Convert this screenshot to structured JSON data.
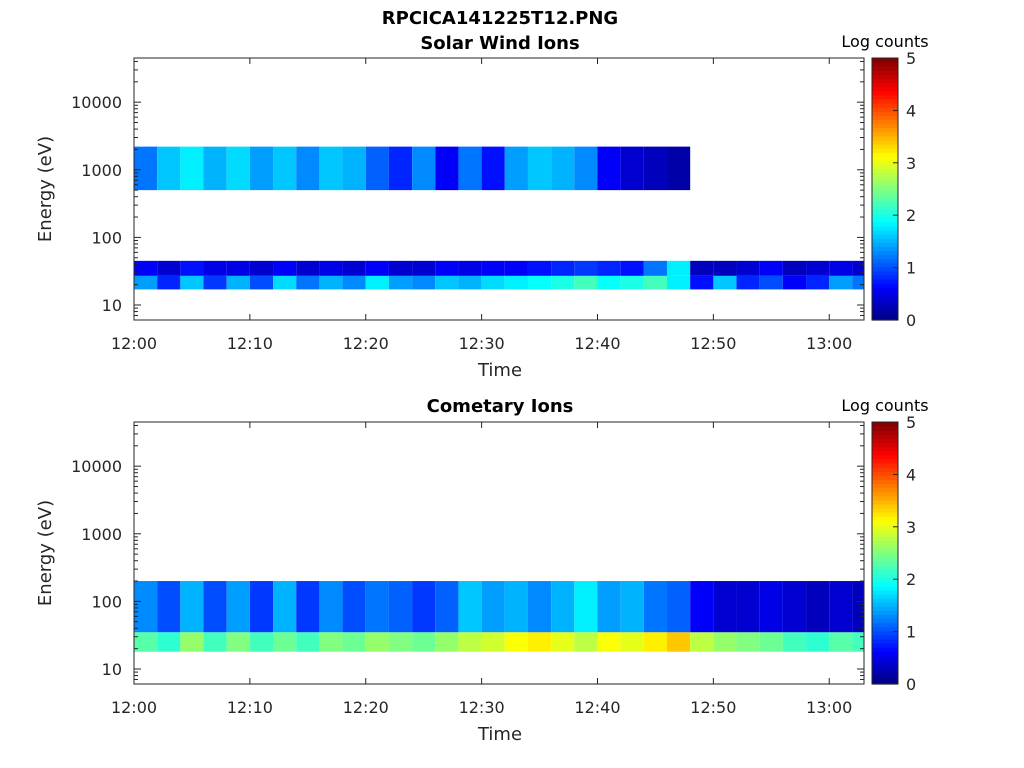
{
  "figure": {
    "title": "RPCICA141225T12.PNG"
  },
  "colorbar": {
    "min": 0,
    "max": 5,
    "ticks": [
      "0",
      "1",
      "2",
      "3",
      "4",
      "5"
    ],
    "colormap": "jet"
  },
  "chart_data": [
    {
      "type": "heatmap",
      "title": "Solar Wind Ions",
      "xlabel": "Time",
      "ylabel": "Energy (eV)",
      "colorbar_label": "Log counts",
      "xlim": [
        "12:00",
        "13:03"
      ],
      "ylim": [
        6,
        45000
      ],
      "y_scale": "log",
      "xticks": [
        "12:00",
        "12:10",
        "12:20",
        "12:30",
        "12:40",
        "12:50",
        "13:00"
      ],
      "yticks": [
        "10",
        "100",
        "1000",
        "10000"
      ],
      "clim": [
        0,
        5
      ],
      "time_columns": [
        "12:00",
        "12:02",
        "12:04",
        "12:06",
        "12:08",
        "12:10",
        "12:12",
        "12:14",
        "12:16",
        "12:18",
        "12:20",
        "12:22",
        "12:24",
        "12:26",
        "12:28",
        "12:30",
        "12:32",
        "12:34",
        "12:36",
        "12:38",
        "12:40",
        "12:42",
        "12:44",
        "12:46",
        "12:48",
        "12:50",
        "12:52",
        "12:54",
        "12:56",
        "12:58",
        "13:00",
        "13:02"
      ],
      "bands": [
        {
          "energy_range": [
            17,
            27
          ],
          "log_counts": [
            1.4,
            0.8,
            1.6,
            0.9,
            1.5,
            1.0,
            1.7,
            1.2,
            1.5,
            1.3,
            1.8,
            1.4,
            1.3,
            1.6,
            1.5,
            1.7,
            1.8,
            1.9,
            2.0,
            2.2,
            1.9,
            2.0,
            2.2,
            1.8,
            0.7,
            1.6,
            0.8,
            1.0,
            0.6,
            0.8,
            1.4,
            1.2
          ]
        },
        {
          "energy_range": [
            27,
            45
          ],
          "log_counts": [
            0.6,
            0.4,
            0.7,
            0.5,
            0.5,
            0.4,
            0.6,
            0.4,
            0.5,
            0.4,
            0.6,
            0.4,
            0.4,
            0.6,
            0.5,
            0.6,
            0.6,
            0.7,
            0.8,
            0.9,
            0.8,
            0.7,
            1.2,
            1.8,
            0.3,
            0.3,
            0.4,
            0.6,
            0.3,
            0.4,
            0.5,
            0.4
          ]
        },
        {
          "energy_range": [
            500,
            2200
          ],
          "log_counts": [
            1.2,
            1.6,
            1.8,
            1.5,
            1.7,
            1.4,
            1.6,
            1.3,
            1.6,
            1.5,
            1.1,
            0.8,
            1.3,
            0.6,
            1.2,
            0.7,
            1.4,
            1.6,
            1.5,
            1.3,
            0.6,
            0.4,
            0.3,
            0.2,
            0,
            0,
            0,
            0,
            0,
            0,
            0,
            0
          ]
        }
      ]
    },
    {
      "type": "heatmap",
      "title": "Cometary Ions",
      "xlabel": "Time",
      "ylabel": "Energy (eV)",
      "colorbar_label": "Log counts",
      "xlim": [
        "12:00",
        "13:03"
      ],
      "ylim": [
        6,
        45000
      ],
      "y_scale": "log",
      "xticks": [
        "12:00",
        "12:10",
        "12:20",
        "12:30",
        "12:40",
        "12:50",
        "13:00"
      ],
      "yticks": [
        "10",
        "100",
        "1000",
        "10000"
      ],
      "clim": [
        0,
        5
      ],
      "time_columns": [
        "12:00",
        "12:02",
        "12:04",
        "12:06",
        "12:08",
        "12:10",
        "12:12",
        "12:14",
        "12:16",
        "12:18",
        "12:20",
        "12:22",
        "12:24",
        "12:26",
        "12:28",
        "12:30",
        "12:32",
        "12:34",
        "12:36",
        "12:38",
        "12:40",
        "12:42",
        "12:44",
        "12:46",
        "12:48",
        "12:50",
        "12:52",
        "12:54",
        "12:56",
        "12:58",
        "13:00",
        "13:02"
      ],
      "bands": [
        {
          "energy_range": [
            18,
            35
          ],
          "log_counts": [
            2.3,
            2.1,
            2.6,
            2.2,
            2.5,
            2.2,
            2.4,
            2.2,
            2.5,
            2.4,
            2.6,
            2.5,
            2.4,
            2.6,
            2.8,
            2.9,
            3.1,
            3.2,
            3.0,
            2.8,
            3.1,
            3.0,
            3.2,
            3.4,
            2.8,
            2.6,
            2.5,
            2.4,
            2.2,
            2.1,
            2.3,
            2.2
          ]
        },
        {
          "energy_range": [
            35,
            200
          ],
          "log_counts": [
            1.3,
            1.0,
            1.5,
            1.0,
            1.4,
            0.9,
            1.5,
            0.9,
            1.3,
            1.0,
            1.2,
            1.1,
            0.9,
            1.1,
            1.6,
            1.4,
            1.5,
            1.3,
            1.5,
            1.8,
            1.4,
            1.5,
            1.2,
            1.1,
            0.6,
            0.4,
            0.4,
            0.5,
            0.4,
            0.3,
            0.4,
            0.3
          ]
        }
      ]
    }
  ]
}
